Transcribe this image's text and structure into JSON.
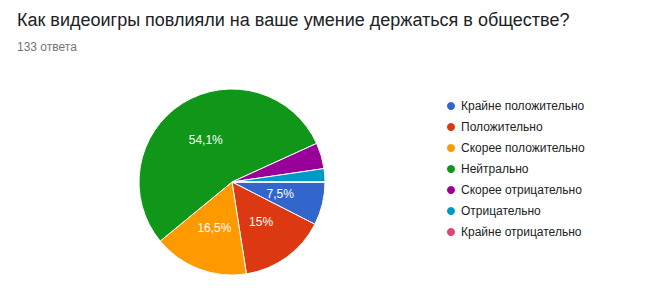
{
  "chart_data": {
    "type": "pie",
    "title": "Как видеоигры повлияли на ваше умение держаться в обществе?",
    "subtitle": "133 ответа",
    "categories": [
      "Крайне положительно",
      "Положительно",
      "Скорее положительно",
      "Нейтрально",
      "Скорее отрицательно",
      "Отрицательно",
      "Крайне отрицательно"
    ],
    "values": [
      7.5,
      15,
      16.5,
      54.1,
      4.5,
      2.3,
      0
    ],
    "value_labels": [
      "7,5%",
      "15%",
      "16,5%",
      "54,1%",
      null,
      null,
      null
    ],
    "colors": [
      "#3366cc",
      "#dc3912",
      "#ff9900",
      "#109618",
      "#990099",
      "#0099c6",
      "#dd4477"
    ],
    "data_labels": true,
    "legend": "right"
  }
}
